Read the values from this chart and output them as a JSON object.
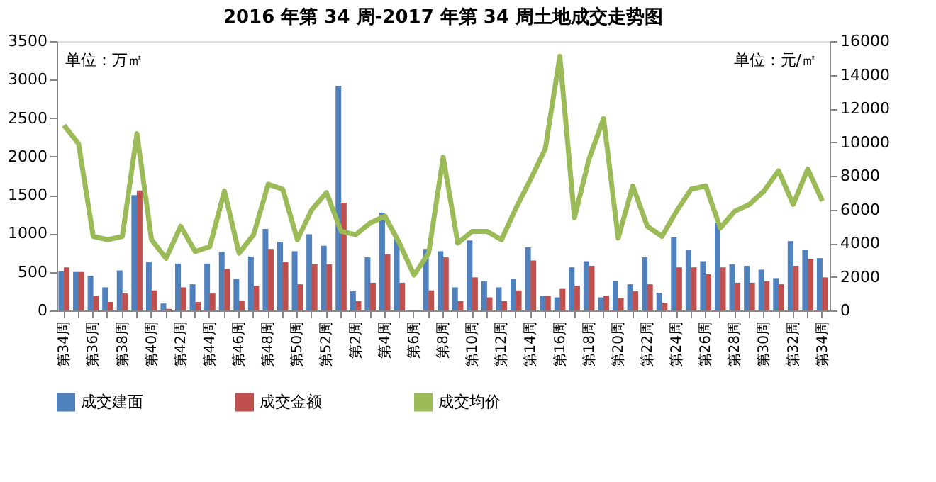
{
  "chart_data": {
    "type": "bar",
    "title": "2016 年第 34 周-2017 年第 34 周土地成交走势图",
    "ylabel": "单位：万㎡",
    "y2label": "单位：元/㎡",
    "categories": [
      "第34周",
      null,
      "第36周",
      null,
      "第38周",
      null,
      "第40周",
      null,
      "第42周",
      null,
      "第44周",
      null,
      "第46周",
      null,
      "第48周",
      null,
      "第50周",
      null,
      "第52周",
      null,
      "第2周",
      null,
      "第4周",
      null,
      "第6周",
      null,
      "第8周",
      null,
      "第10周",
      null,
      "第12周",
      null,
      "第14周",
      null,
      "第16周",
      null,
      "第18周",
      null,
      "第20周",
      null,
      "第22周",
      null,
      "第24周",
      null,
      "第26周",
      null,
      "第28周",
      null,
      "第30周",
      null,
      "第32周",
      null,
      "第34周"
    ],
    "series": [
      {
        "name": "成交建面",
        "color": "#4f81bd",
        "values": [
          510,
          500,
          450,
          300,
          520,
          1500,
          630,
          90,
          610,
          340,
          610,
          760,
          410,
          700,
          1060,
          890,
          770,
          990,
          840,
          2920,
          250,
          690,
          1270,
          930,
          null,
          800,
          770,
          300,
          910,
          380,
          300,
          410,
          820,
          190,
          170,
          560,
          640,
          170,
          380,
          340,
          690,
          230,
          950,
          790,
          640,
          1140,
          600,
          580,
          530,
          420,
          900,
          790,
          680
        ]
      },
      {
        "name": "成交金额",
        "color": "#c0504d",
        "values": [
          560,
          500,
          190,
          110,
          220,
          1560,
          260,
          20,
          300,
          110,
          220,
          540,
          130,
          320,
          800,
          630,
          340,
          600,
          600,
          1400,
          120,
          360,
          730,
          360,
          null,
          260,
          690,
          120,
          430,
          170,
          120,
          260,
          650,
          190,
          280,
          320,
          580,
          190,
          160,
          250,
          340,
          100,
          560,
          560,
          470,
          560,
          360,
          360,
          380,
          340,
          580,
          670,
          430
        ]
      },
      {
        "name": "成交均价",
        "type": "line",
        "axis": "y2",
        "color": "#9bbb59",
        "values": [
          11000,
          9900,
          4400,
          4200,
          4400,
          10500,
          4200,
          3100,
          5000,
          3500,
          3800,
          7100,
          3400,
          4500,
          7500,
          7200,
          4200,
          6000,
          7000,
          4700,
          4500,
          5200,
          5600,
          4000,
          2100,
          3400,
          9100,
          4000,
          4700,
          4700,
          4200,
          6100,
          7800,
          9600,
          15100,
          5500,
          9000,
          11400,
          4300,
          7400,
          5000,
          4400,
          5900,
          7200,
          7400,
          4900,
          5900,
          6300,
          7100,
          8300,
          6300,
          8400,
          6500
        ]
      }
    ],
    "ylim": [
      0,
      3500
    ],
    "yticks": [
      0,
      500,
      1000,
      1500,
      2000,
      2500,
      3000,
      3500
    ],
    "y2lim": [
      0,
      16000
    ],
    "y2ticks": [
      0,
      2000,
      4000,
      6000,
      8000,
      10000,
      12000,
      14000,
      16000
    ],
    "grid": false,
    "legend": "bottom",
    "marker": "none",
    "line_style": "solid"
  }
}
